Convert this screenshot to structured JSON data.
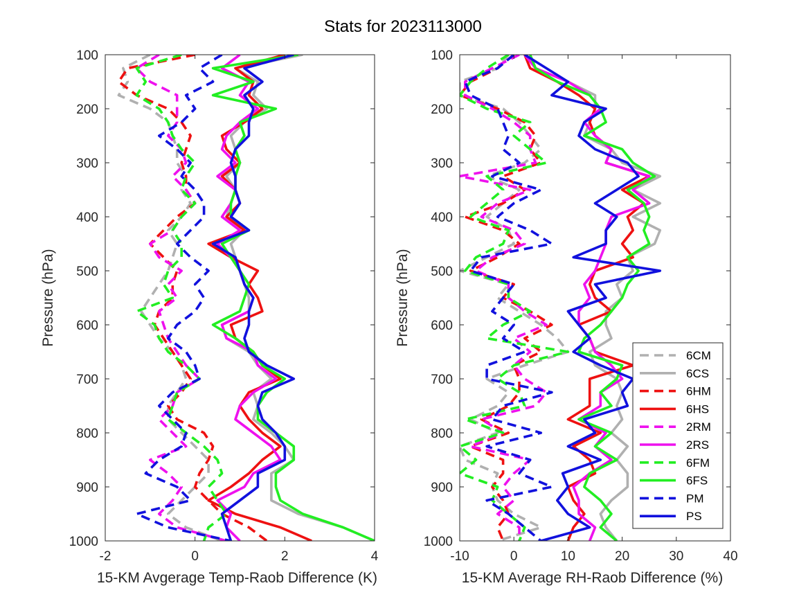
{
  "figure": {
    "title": "Stats for 2023113000"
  },
  "series_styles": {
    "6CM": {
      "color": "#b0b0b0",
      "dashed": true
    },
    "6CS": {
      "color": "#b0b0b0",
      "dashed": false
    },
    "6HM": {
      "color": "#ee1111",
      "dashed": true
    },
    "6HS": {
      "color": "#ee1111",
      "dashed": false
    },
    "2RM": {
      "color": "#ee11ee",
      "dashed": true
    },
    "2RS": {
      "color": "#ee11ee",
      "dashed": false
    },
    "6FM": {
      "color": "#22ee22",
      "dashed": true
    },
    "6FS": {
      "color": "#22ee22",
      "dashed": false
    },
    "PM": {
      "color": "#1111dd",
      "dashed": true
    },
    "PS": {
      "color": "#1111dd",
      "dashed": false
    }
  },
  "chart_data": [
    {
      "type": "line",
      "xlabel": "15-KM Avgerage Temp-Raob Difference (K)",
      "ylabel": "Pressure (hPa)",
      "xlim": [
        -2,
        4
      ],
      "ylim": [
        100,
        1000
      ],
      "y_reversed": true,
      "xticks": [
        "-2",
        "0",
        "2",
        "4"
      ],
      "yticks": [
        "100",
        "200",
        "300",
        "400",
        "500",
        "600",
        "700",
        "800",
        "900",
        "1000"
      ],
      "y": [
        100,
        125,
        150,
        175,
        200,
        225,
        250,
        275,
        300,
        325,
        350,
        375,
        400,
        425,
        450,
        475,
        500,
        525,
        550,
        575,
        600,
        625,
        650,
        675,
        700,
        725,
        750,
        775,
        800,
        825,
        850,
        875,
        900,
        925,
        950,
        975,
        1000
      ],
      "series": [
        {
          "name": "6CM",
          "values": [
            -1.0,
            -1.6,
            -1.5,
            -1.7,
            -1.0,
            -0.6,
            -0.5,
            -0.4,
            -0.4,
            -0.2,
            -0.3,
            -0.1,
            -0.3,
            -0.6,
            -0.4,
            -0.5,
            -0.6,
            -0.8,
            -1.0,
            -1.2,
            -1.0,
            -0.8,
            -0.5,
            -0.3,
            -0.2,
            -0.4,
            -0.6,
            -0.6,
            -0.3,
            0.0,
            0.3,
            0.3,
            0.0,
            -0.3,
            -0.6,
            -0.2,
            0.6
          ]
        },
        {
          "name": "6CS",
          "values": [
            2.4,
            0.9,
            1.4,
            1.3,
            1.6,
            1.1,
            0.8,
            0.9,
            1.0,
            0.7,
            0.9,
            0.8,
            0.7,
            1.1,
            0.8,
            0.9,
            1.0,
            1.1,
            1.2,
            1.2,
            0.6,
            0.7,
            1.2,
            1.4,
            1.7,
            1.3,
            1.4,
            1.3,
            1.7,
            2.0,
            2.2,
            1.7,
            1.7,
            1.7,
            2.3,
            3.3,
            4.0
          ]
        },
        {
          "name": "6HM",
          "values": [
            0.0,
            -1.5,
            -1.7,
            -1.3,
            -0.6,
            -0.3,
            -0.1,
            -0.2,
            -0.3,
            -0.2,
            -0.2,
            0.0,
            -0.4,
            -0.7,
            -1.0,
            -0.7,
            -0.4,
            -0.5,
            -0.5,
            -0.8,
            -0.9,
            -0.7,
            -0.5,
            -0.3,
            -0.1,
            -0.3,
            -0.6,
            -0.4,
            0.2,
            0.4,
            0.3,
            0.1,
            0.0,
            0.3,
            0.6,
            1.2,
            1.6
          ]
        },
        {
          "name": "6HS",
          "values": [
            2.0,
            0.9,
            1.3,
            1.2,
            1.5,
            1.1,
            0.6,
            0.7,
            1.0,
            0.6,
            0.9,
            1.0,
            0.7,
            1.1,
            0.3,
            0.8,
            1.4,
            1.2,
            1.4,
            1.5,
            0.8,
            0.9,
            1.3,
            1.5,
            1.9,
            1.2,
            1.0,
            1.2,
            1.5,
            1.9,
            1.5,
            1.2,
            0.8,
            0.3,
            0.9,
            1.9,
            2.6
          ]
        },
        {
          "name": "2RM",
          "values": [
            -0.8,
            -1.3,
            -1.0,
            -0.4,
            -0.4,
            -0.4,
            -0.6,
            -0.3,
            -0.2,
            -0.5,
            -0.2,
            0.0,
            -0.3,
            -0.5,
            -1.0,
            -0.8,
            -0.3,
            -0.6,
            -0.4,
            -0.8,
            -0.7,
            -0.6,
            -0.4,
            -0.2,
            0.1,
            -0.4,
            -0.5,
            -0.8,
            -0.5,
            -0.2,
            -1.0,
            -0.6,
            -0.3,
            -0.5,
            -0.8,
            -0.4,
            0.7
          ]
        },
        {
          "name": "2RS",
          "values": [
            1.0,
            0.6,
            1.2,
            1.0,
            1.4,
            1.0,
            0.7,
            0.6,
            0.9,
            0.5,
            0.9,
            0.8,
            0.6,
            1.0,
            0.5,
            0.8,
            1.0,
            1.1,
            1.3,
            1.2,
            0.6,
            0.7,
            1.3,
            1.4,
            1.8,
            1.3,
            1.0,
            0.9,
            1.3,
            1.7,
            1.9,
            1.3,
            1.1,
            0.5,
            0.8,
            0.7,
            1.0
          ]
        },
        {
          "name": "6FM",
          "values": [
            -0.3,
            -1.3,
            -1.1,
            -1.3,
            -0.8,
            -0.6,
            -0.5,
            -0.3,
            0.0,
            -0.2,
            -0.3,
            0.0,
            -0.3,
            -0.5,
            -0.3,
            -0.3,
            -0.6,
            -0.7,
            -0.5,
            -1.3,
            -0.9,
            -0.8,
            -0.6,
            -0.2,
            0.1,
            -0.4,
            -0.5,
            -0.6,
            -0.2,
            0.2,
            0.5,
            0.6,
            0.3,
            0.5,
            0.7,
            0.3,
            0.2
          ]
        },
        {
          "name": "6FS",
          "values": [
            2.3,
            0.4,
            1.3,
            0.4,
            1.8,
            1.0,
            1.1,
            0.9,
            1.0,
            0.9,
            0.9,
            0.8,
            0.8,
            1.2,
            0.6,
            0.8,
            1.0,
            1.2,
            1.1,
            1.0,
            0.4,
            0.9,
            1.3,
            1.5,
            2.0,
            1.6,
            1.4,
            1.4,
            1.8,
            2.2,
            2.2,
            1.8,
            1.8,
            1.9,
            2.4,
            3.3,
            4.0
          ]
        },
        {
          "name": "PM",
          "values": [
            0.6,
            0.1,
            0.4,
            -0.2,
            0.0,
            -0.3,
            -0.8,
            -0.4,
            -0.1,
            -0.3,
            0.0,
            0.2,
            0.2,
            -0.1,
            -0.4,
            -0.1,
            0.3,
            0.0,
            0.2,
            0.0,
            -0.4,
            -0.6,
            -0.2,
            0.0,
            0.1,
            -0.5,
            -0.8,
            -0.5,
            -0.2,
            -0.3,
            -0.8,
            -1.1,
            -0.4,
            -0.1,
            -1.3,
            -0.6,
            0.8
          ]
        },
        {
          "name": "PS",
          "values": [
            2.2,
            1.1,
            1.5,
            1.1,
            1.3,
            1.2,
            1.2,
            0.9,
            0.8,
            0.9,
            0.9,
            1.0,
            0.8,
            1.2,
            0.4,
            0.9,
            1.0,
            1.1,
            1.3,
            1.2,
            1.2,
            1.1,
            1.2,
            1.6,
            2.2,
            1.5,
            1.4,
            1.5,
            1.8,
            2.0,
            2.0,
            1.4,
            1.4,
            1.0,
            0.6,
            0.7,
            0.8
          ]
        }
      ]
    },
    {
      "type": "line",
      "xlabel": "15-KM Average RH-Raob Difference (%)",
      "ylabel": "Pressure (hPa)",
      "xlim": [
        -10,
        40
      ],
      "ylim": [
        100,
        1000
      ],
      "y_reversed": true,
      "xticks": [
        "-10",
        "0",
        "10",
        "20",
        "30",
        "40"
      ],
      "yticks": [
        "100",
        "200",
        "300",
        "400",
        "500",
        "600",
        "700",
        "800",
        "900",
        "1000"
      ],
      "y": [
        100,
        125,
        150,
        175,
        200,
        225,
        250,
        275,
        300,
        325,
        350,
        375,
        400,
        425,
        450,
        475,
        500,
        525,
        550,
        575,
        600,
        625,
        650,
        675,
        700,
        725,
        750,
        775,
        800,
        825,
        850,
        875,
        900,
        925,
        950,
        975,
        1000
      ],
      "series": [
        {
          "name": "6CM",
          "values": [
            -1,
            -3,
            -10,
            -10,
            -2,
            1,
            3,
            5,
            2,
            -5,
            1,
            -2,
            -5,
            -1,
            0,
            -5,
            -10,
            -1,
            -3,
            1,
            5,
            8,
            10,
            2,
            -5,
            -1,
            -3,
            -8,
            -3,
            -10,
            -9,
            -3,
            -4,
            -3,
            0,
            5,
            -3
          ]
        },
        {
          "name": "6CS",
          "values": [
            2,
            4,
            10,
            15,
            15,
            14,
            13,
            18,
            20,
            27,
            22,
            27,
            22,
            27,
            26,
            21,
            22,
            19,
            20,
            17,
            17,
            18,
            14,
            15,
            19,
            20,
            19,
            20,
            18,
            21,
            19,
            21,
            21,
            18,
            16,
            17,
            19
          ]
        },
        {
          "name": "6HM",
          "values": [
            0,
            -3,
            -8,
            -10,
            -3,
            2,
            4,
            3,
            5,
            -2,
            2,
            -2,
            -9,
            -2,
            1,
            -3,
            -8,
            0,
            -2,
            3,
            7,
            2,
            5,
            0,
            1,
            1,
            -1,
            -6,
            -1,
            -8,
            -2,
            -2,
            -4,
            -2,
            -1,
            -3,
            -2
          ]
        },
        {
          "name": "6HS",
          "values": [
            2,
            3,
            8,
            12,
            15,
            14,
            15,
            18,
            17,
            25,
            20,
            24,
            21,
            22,
            20,
            22,
            15,
            14,
            15,
            18,
            12,
            14,
            15,
            22,
            14,
            14,
            14,
            10,
            16,
            11,
            14,
            15,
            10,
            11,
            13,
            11,
            10
          ]
        },
        {
          "name": "2RM",
          "values": [
            1,
            -4,
            -9,
            -9,
            -4,
            0,
            3,
            3,
            4,
            -10,
            3,
            -3,
            -6,
            0,
            2,
            -4,
            -7,
            -1,
            -1,
            2,
            6,
            0,
            3,
            0,
            2,
            6,
            4,
            -6,
            -2,
            -8,
            3,
            0,
            -2,
            0,
            -3,
            1,
            1
          ]
        },
        {
          "name": "2RS",
          "values": [
            2,
            4,
            10,
            14,
            16,
            13,
            15,
            18,
            17,
            25,
            22,
            25,
            18,
            17,
            17,
            16,
            15,
            13,
            14,
            12,
            12,
            14,
            15,
            18,
            20,
            16,
            16,
            12,
            17,
            15,
            18,
            14,
            11,
            12,
            12,
            15,
            14
          ]
        },
        {
          "name": "6FM",
          "values": [
            -1,
            -5,
            -8,
            -10,
            -5,
            3,
            0,
            3,
            6,
            -5,
            -2,
            -5,
            -8,
            -1,
            -2,
            -7,
            -9,
            -1,
            -1,
            3,
            -2,
            -5,
            10,
            0,
            -3,
            1,
            2,
            -9,
            -2,
            -10,
            -7,
            -10,
            -3,
            -4,
            -1,
            2,
            1
          ]
        },
        {
          "name": "6FS",
          "values": [
            3,
            4,
            8,
            14,
            16,
            17,
            13,
            20,
            22,
            26,
            21,
            24,
            25,
            24,
            25,
            21,
            23,
            21,
            20,
            18,
            16,
            13,
            12,
            20,
            19,
            16,
            18,
            12,
            18,
            15,
            19,
            14,
            13,
            16,
            18,
            16,
            19
          ]
        },
        {
          "name": "PM",
          "values": [
            0,
            -3,
            -9,
            -8,
            -3,
            -2,
            -1,
            -2,
            1,
            -4,
            5,
            0,
            -3,
            3,
            7,
            -6,
            -8,
            0,
            -2,
            -4,
            0,
            -2,
            2,
            -5,
            -5,
            7,
            -2,
            -4,
            5,
            -5,
            3,
            1,
            7,
            -5,
            -1,
            2,
            5
          ]
        },
        {
          "name": "PS",
          "values": [
            2,
            6,
            10,
            7,
            17,
            13,
            12,
            15,
            21,
            23,
            19,
            15,
            19,
            17,
            17,
            11,
            27,
            15,
            17,
            10,
            12,
            14,
            11,
            16,
            22,
            20,
            21,
            13,
            15,
            10,
            16,
            9,
            10,
            8,
            10,
            14,
            5
          ]
        }
      ],
      "legend": {
        "placement": "bottom-right inside",
        "entries": [
          "6CM",
          "6CS",
          "6HM",
          "6HS",
          "2RM",
          "2RS",
          "6FM",
          "6FS",
          "PM",
          "PS"
        ]
      }
    }
  ]
}
